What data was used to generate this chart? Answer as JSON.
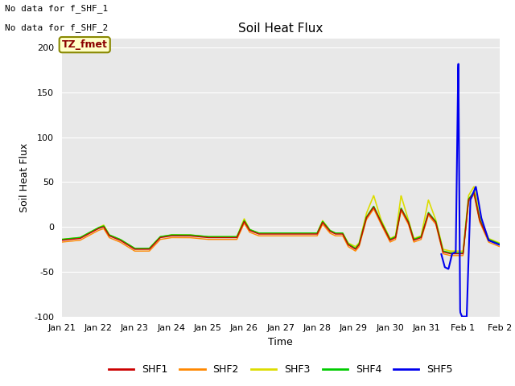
{
  "title": "Soil Heat Flux",
  "xlabel": "Time",
  "ylabel": "Soil Heat Flux",
  "ylim": [
    -100,
    210
  ],
  "yticks": [
    -100,
    -50,
    0,
    50,
    100,
    150,
    200
  ],
  "plot_bg": "#e8e8e8",
  "fig_bg": "#ffffff",
  "series_colors": {
    "SHF1": "#cc0000",
    "SHF2": "#ff8800",
    "SHF3": "#dddd00",
    "SHF4": "#00cc00",
    "SHF5": "#0000ee"
  },
  "note_line1": "No data for f_SHF_1",
  "note_line2": "No data for f_SHF_2",
  "tz_label": "TZ_fmet",
  "xtick_labels": [
    "Jan 21",
    "Jan 22",
    "Jan 23",
    "Jan 24",
    "Jan 25",
    "Jan 26",
    "Jan 27",
    "Jan 28",
    "Jan 29",
    "Jan 30",
    "Jan 31",
    "Feb 1",
    "Feb 2"
  ],
  "xtick_positions": [
    0,
    1,
    2,
    3,
    4,
    5,
    6,
    7,
    8,
    9,
    10,
    11,
    12
  ]
}
